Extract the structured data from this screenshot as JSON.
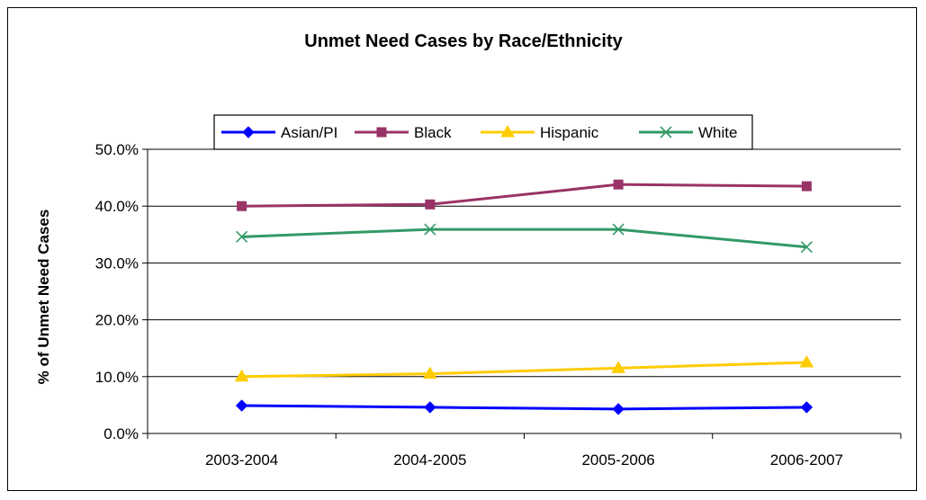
{
  "chart_data": {
    "type": "line",
    "title": "Unmet Need Cases by Race/Ethnicity",
    "xlabel": "",
    "ylabel": "% of Unmet Need Cases",
    "categories": [
      "2003-2004",
      "2004-2005",
      "2005-2006",
      "2006-2007"
    ],
    "ylim": [
      0,
      50
    ],
    "yticks": [
      "0.0%",
      "10.0%",
      "20.0%",
      "30.0%",
      "40.0%",
      "50.0%"
    ],
    "grid": true,
    "legend_position": "top-center",
    "series": [
      {
        "name": "Asian/PI",
        "values": [
          4.9,
          4.6,
          4.3,
          4.6
        ],
        "color": "#0000ff",
        "marker": "diamond"
      },
      {
        "name": "Black",
        "values": [
          40.0,
          40.3,
          43.8,
          43.5
        ],
        "color": "#993366",
        "marker": "square"
      },
      {
        "name": "Hispanic",
        "values": [
          10.0,
          10.5,
          11.5,
          12.5
        ],
        "color": "#ffcc00",
        "marker": "triangle"
      },
      {
        "name": "White",
        "values": [
          34.6,
          35.9,
          35.9,
          32.8
        ],
        "color": "#339966",
        "marker": "x"
      }
    ]
  }
}
